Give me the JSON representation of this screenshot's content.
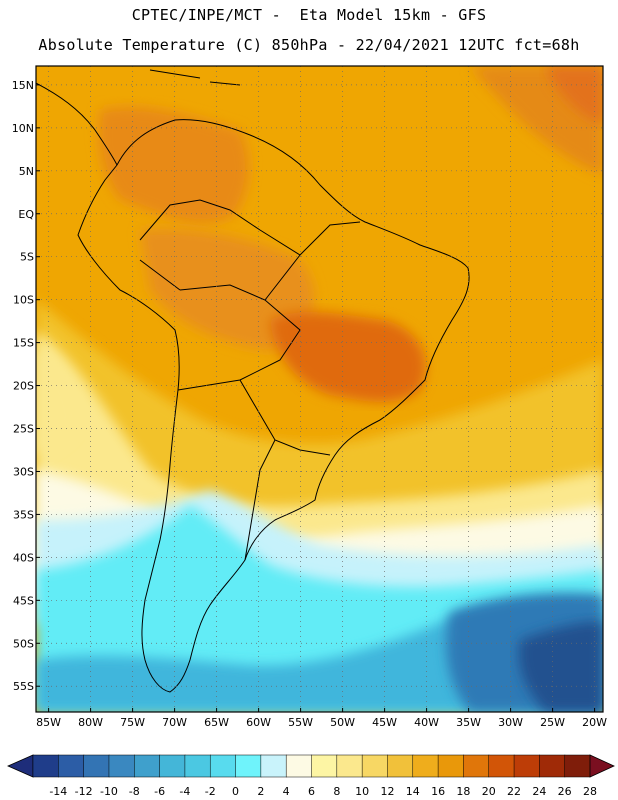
{
  "header": {
    "line1": "CPTEC/INPE/MCT -  Eta Model 15km - GFS",
    "line2": "Absolute Temperature (C) 850hPa - 22/04/2021 12UTC fct=68h"
  },
  "map": {
    "lat_labels": [
      "15N",
      "10N",
      "5N",
      "EQ",
      "5S",
      "10S",
      "15S",
      "20S",
      "25S",
      "30S",
      "35S",
      "40S",
      "45S",
      "50S",
      "55S"
    ],
    "lon_labels": [
      "85W",
      "80W",
      "75W",
      "70W",
      "65W",
      "60W",
      "55W",
      "50W",
      "45W",
      "40W",
      "35W",
      "30W",
      "25W",
      "20W"
    ],
    "bands": [
      {
        "name": "warm-tropics",
        "color": "#efa602"
      },
      {
        "name": "hot-core",
        "color": "#e06b10"
      },
      {
        "name": "subtropical",
        "color": "#f2c22c"
      },
      {
        "name": "mid",
        "color": "#fbe88d"
      },
      {
        "name": "cool",
        "color": "#c6f2fb"
      },
      {
        "name": "cold",
        "color": "#62ecf6"
      },
      {
        "name": "colder",
        "color": "#3fb6dc"
      },
      {
        "name": "coldest",
        "color": "#2a64a5"
      }
    ]
  },
  "colorbar": {
    "labels": [
      "-14",
      "-12",
      "-10",
      "-8",
      "-6",
      "-4",
      "-2",
      "0",
      "2",
      "4",
      "6",
      "8",
      "10",
      "12",
      "14",
      "16",
      "18",
      "20",
      "22",
      "24",
      "26",
      "28"
    ],
    "colors": [
      "#1f3d8a",
      "#2c5da6",
      "#3374b4",
      "#3a88c0",
      "#3fa0cc",
      "#44b6d8",
      "#4bc8e2",
      "#58dbee",
      "#6ff3fb",
      "#c9f3fb",
      "#fdfae4",
      "#fdf5a4",
      "#fbe88d",
      "#f7d764",
      "#f1c13a",
      "#efad1c",
      "#e9980a",
      "#e0760a",
      "#d25507",
      "#bd3d07",
      "#9f2a07",
      "#7f1d0a"
    ],
    "low_arrow_color": "#1e2d7a",
    "high_arrow_color": "#7a0f20"
  }
}
